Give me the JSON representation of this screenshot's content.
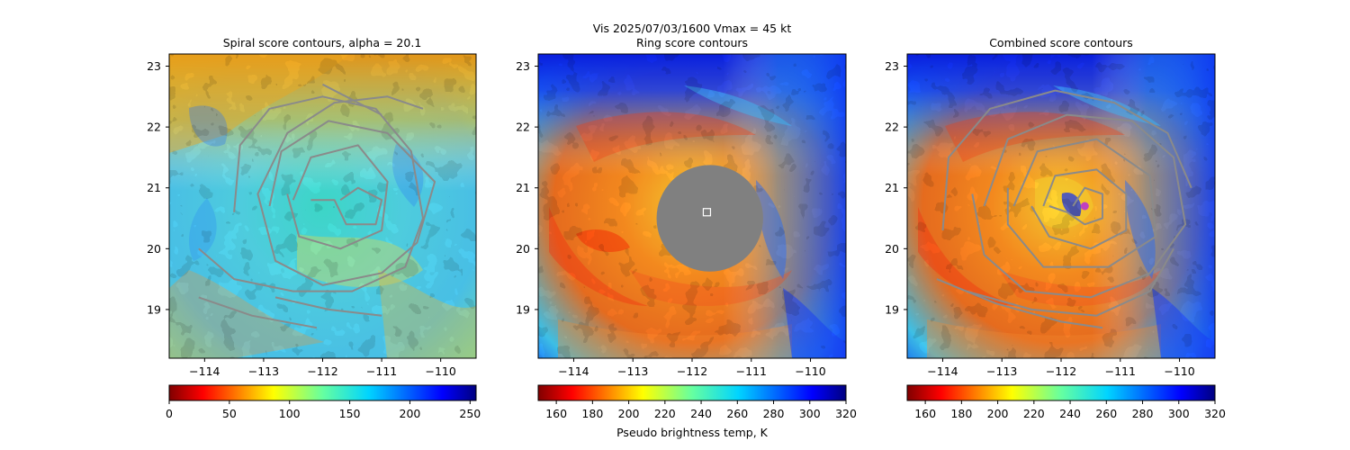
{
  "figure": {
    "suptitle_line1": "Vis  2025/07/03/1600    Vmax = 45 kt",
    "colorbar_label": "Pseudo brightness temp, K"
  },
  "colors": {
    "contour": "#8a8a8a",
    "mask": "#808080",
    "center_marker_fill": "#c040c0"
  },
  "chart_data": [
    {
      "type": "heatmap",
      "title": "Spiral score contours, alpha = 20.1",
      "xlim": [
        -114.6,
        -109.4
      ],
      "ylim": [
        18.2,
        23.2
      ],
      "xticks": [
        -114,
        -113,
        -112,
        -111,
        -110
      ],
      "yticks": [
        19,
        20,
        21,
        22,
        23
      ],
      "xtick_labels": [
        "−114",
        "−113",
        "−112",
        "−111",
        "−110"
      ],
      "ytick_labels": [
        "19",
        "20",
        "21",
        "22",
        "23"
      ],
      "colormap": "jet_r",
      "colorbar": {
        "range": [
          0,
          255
        ],
        "ticks": [
          0,
          50,
          100,
          150,
          200,
          250
        ],
        "labels": [
          "0",
          "50",
          "100",
          "150",
          "200",
          "250"
        ]
      },
      "contours": [
        [
          [
            -112.9,
            20.7
          ],
          [
            -112.7,
            21.6
          ],
          [
            -111.9,
            22.1
          ],
          [
            -110.9,
            21.9
          ],
          [
            -110.1,
            21.1
          ],
          [
            -110.4,
            20.1
          ],
          [
            -111.0,
            19.6
          ],
          [
            -112.0,
            19.4
          ],
          [
            -112.8,
            19.8
          ],
          [
            -113.1,
            20.9
          ],
          [
            -112.6,
            21.9
          ],
          [
            -111.8,
            22.4
          ],
          [
            -110.9,
            22.5
          ],
          [
            -110.3,
            22.3
          ]
        ],
        [
          [
            -112.5,
            20.8
          ],
          [
            -112.2,
            21.5
          ],
          [
            -111.4,
            21.7
          ],
          [
            -110.9,
            21.1
          ],
          [
            -111.0,
            20.3
          ],
          [
            -111.7,
            20.0
          ],
          [
            -112.4,
            20.2
          ],
          [
            -112.6,
            20.9
          ]
        ],
        [
          [
            -111.7,
            20.8
          ],
          [
            -111.4,
            21.0
          ],
          [
            -111.0,
            20.8
          ],
          [
            -111.1,
            20.4
          ],
          [
            -111.6,
            20.4
          ],
          [
            -111.8,
            20.8
          ],
          [
            -112.2,
            20.8
          ]
        ],
        [
          [
            -114.1,
            20.0
          ],
          [
            -113.5,
            19.5
          ],
          [
            -112.5,
            19.3
          ],
          [
            -111.5,
            19.3
          ],
          [
            -110.6,
            19.7
          ],
          [
            -110.3,
            20.5
          ],
          [
            -110.5,
            21.6
          ],
          [
            -111.1,
            22.3
          ],
          [
            -112.0,
            22.5
          ],
          [
            -112.9,
            22.3
          ],
          [
            -113.4,
            21.7
          ],
          [
            -113.5,
            20.6
          ]
        ],
        [
          [
            -114.1,
            19.2
          ],
          [
            -113.2,
            18.9
          ],
          [
            -112.1,
            18.7
          ]
        ],
        [
          [
            -112.8,
            19.2
          ],
          [
            -111.9,
            19.0
          ],
          [
            -111.0,
            18.9
          ]
        ],
        [
          [
            -112.0,
            22.7
          ],
          [
            -111.4,
            22.4
          ],
          [
            -111.0,
            22.2
          ]
        ]
      ]
    },
    {
      "type": "heatmap",
      "title": "Ring score contours",
      "xlim": [
        -114.6,
        -109.4
      ],
      "ylim": [
        18.2,
        23.2
      ],
      "xticks": [
        -114,
        -113,
        -112,
        -111,
        -110
      ],
      "yticks": [
        19,
        20,
        21,
        22,
        23
      ],
      "xtick_labels": [
        "−114",
        "−113",
        "−112",
        "−111",
        "−110"
      ],
      "ytick_labels": [
        "19",
        "20",
        "21",
        "22",
        "23"
      ],
      "colormap": "jet_r",
      "masked_region": {
        "center": [
          -111.7,
          20.5
        ],
        "radius_deg": 0.9
      },
      "center_marker": [
        -111.75,
        20.6
      ],
      "colorbar": {
        "range": [
          150,
          320
        ],
        "ticks": [
          160,
          180,
          200,
          220,
          240,
          260,
          280,
          300,
          320
        ],
        "labels": [
          "160",
          "180",
          "200",
          "220",
          "240",
          "260",
          "280",
          "300",
          "320"
        ]
      }
    },
    {
      "type": "heatmap",
      "title": "Combined score contours",
      "xlim": [
        -114.6,
        -109.4
      ],
      "ylim": [
        18.2,
        23.2
      ],
      "xticks": [
        -114,
        -113,
        -112,
        -111,
        -110
      ],
      "yticks": [
        19,
        20,
        21,
        22,
        23
      ],
      "xtick_labels": [
        "−114",
        "−113",
        "−112",
        "−111",
        "−110"
      ],
      "ytick_labels": [
        "19",
        "20",
        "21",
        "22",
        "23"
      ],
      "colormap": "jet_r",
      "center_marker": [
        -111.6,
        20.7
      ],
      "colorbar": {
        "range": [
          150,
          320
        ],
        "ticks": [
          160,
          180,
          200,
          220,
          240,
          260,
          280,
          300,
          320
        ],
        "labels": [
          "160",
          "180",
          "200",
          "220",
          "240",
          "260",
          "280",
          "300",
          "320"
        ]
      },
      "contours": [
        [
          [
            -111.8,
            20.7
          ],
          [
            -111.6,
            21.0
          ],
          [
            -111.3,
            20.9
          ],
          [
            -111.3,
            20.5
          ],
          [
            -111.6,
            20.4
          ],
          [
            -111.9,
            20.6
          ],
          [
            -112.2,
            20.7
          ]
        ],
        [
          [
            -112.3,
            20.7
          ],
          [
            -112.1,
            21.2
          ],
          [
            -111.4,
            21.3
          ],
          [
            -110.9,
            20.9
          ],
          [
            -110.9,
            20.3
          ],
          [
            -111.5,
            20.0
          ],
          [
            -112.2,
            20.2
          ],
          [
            -112.5,
            20.7
          ]
        ],
        [
          [
            -112.8,
            20.7
          ],
          [
            -112.4,
            21.6
          ],
          [
            -111.4,
            21.8
          ],
          [
            -110.5,
            21.2
          ],
          [
            -110.4,
            20.2
          ],
          [
            -111.2,
            19.7
          ],
          [
            -112.3,
            19.7
          ],
          [
            -112.9,
            20.4
          ],
          [
            -112.9,
            21.0
          ]
        ],
        [
          [
            -113.3,
            20.7
          ],
          [
            -112.9,
            21.8
          ],
          [
            -111.9,
            22.2
          ],
          [
            -110.8,
            22.1
          ],
          [
            -110.1,
            21.5
          ],
          [
            -109.9,
            20.4
          ],
          [
            -110.5,
            19.6
          ],
          [
            -111.5,
            19.2
          ],
          [
            -112.6,
            19.3
          ],
          [
            -113.3,
            19.9
          ],
          [
            -113.5,
            20.9
          ]
        ],
        [
          [
            -114.0,
            20.3
          ],
          [
            -113.9,
            21.5
          ],
          [
            -113.2,
            22.3
          ],
          [
            -112.1,
            22.6
          ],
          [
            -111.1,
            22.4
          ],
          [
            -110.2,
            21.9
          ],
          [
            -109.8,
            21.0
          ]
        ],
        [
          [
            -113.6,
            19.3
          ],
          [
            -112.5,
            19.0
          ],
          [
            -111.4,
            18.9
          ],
          [
            -110.5,
            19.3
          ],
          [
            -110.1,
            20.0
          ]
        ],
        [
          [
            -114.1,
            19.5
          ],
          [
            -113.1,
            19.1
          ],
          [
            -112.0,
            18.8
          ],
          [
            -111.3,
            18.7
          ]
        ]
      ]
    }
  ]
}
